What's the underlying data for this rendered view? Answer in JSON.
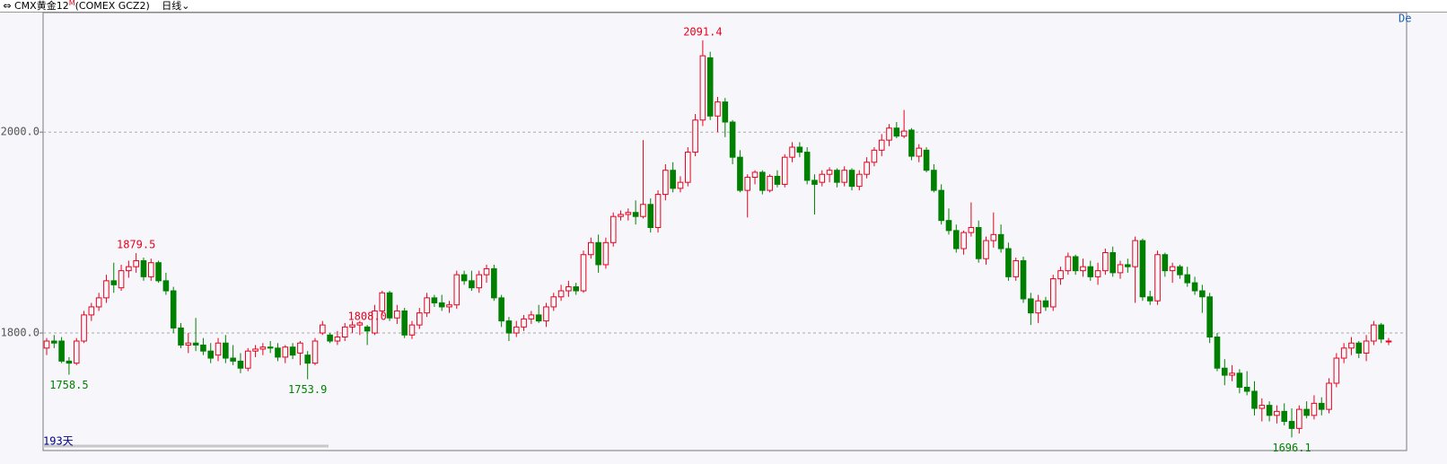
{
  "header": {
    "symbol": "CMX黄金12",
    "badge": "M",
    "code": "(COMEX GCZ2)",
    "period": "日线",
    "corner": "De",
    "days": "193天"
  },
  "chart_data": {
    "type": "candlestick",
    "up_color": "#e8001c",
    "down_color": "#008000",
    "grid": true,
    "ylim": [
      1683,
      2119
    ],
    "yticks": [
      {
        "value": 1800,
        "label": "1800.0"
      },
      {
        "value": 2000,
        "label": "2000.0"
      }
    ],
    "annotations": [
      2091.4,
      1879.5,
      1758.5,
      1753.9,
      {
        "value": 1808,
        "label": "1808.0"
      },
      1696.1
    ],
    "candles": [
      [
        1785,
        1795,
        1778,
        1792
      ],
      [
        1792,
        1798,
        1785,
        1790
      ],
      [
        1792,
        1796,
        1770,
        1772
      ],
      [
        1772,
        1776,
        1758.5,
        1770
      ],
      [
        1770,
        1795,
        1768,
        1792
      ],
      [
        1792,
        1822,
        1790,
        1818
      ],
      [
        1818,
        1830,
        1812,
        1826
      ],
      [
        1826,
        1840,
        1822,
        1835
      ],
      [
        1835,
        1858,
        1830,
        1852
      ],
      [
        1852,
        1870,
        1840,
        1848
      ],
      [
        1845,
        1868,
        1842,
        1862
      ],
      [
        1862,
        1872,
        1855,
        1866
      ],
      [
        1866,
        1879.5,
        1860,
        1872
      ],
      [
        1872,
        1875,
        1852,
        1856
      ],
      [
        1856,
        1874,
        1852,
        1870
      ],
      [
        1870,
        1872,
        1850,
        1852
      ],
      [
        1852,
        1860,
        1838,
        1842
      ],
      [
        1842,
        1846,
        1800,
        1805
      ],
      [
        1805,
        1810,
        1785,
        1788
      ],
      [
        1788,
        1800,
        1780,
        1790
      ],
      [
        1790,
        1815,
        1782,
        1788
      ],
      [
        1788,
        1795,
        1778,
        1782
      ],
      [
        1782,
        1790,
        1770,
        1775
      ],
      [
        1778,
        1795,
        1772,
        1790
      ],
      [
        1790,
        1798,
        1770,
        1775
      ],
      [
        1775,
        1788,
        1768,
        1772
      ],
      [
        1772,
        1780,
        1760,
        1765
      ],
      [
        1765,
        1785,
        1762,
        1782
      ],
      [
        1782,
        1788,
        1776,
        1784
      ],
      [
        1784,
        1790,
        1778,
        1786
      ],
      [
        1786,
        1792,
        1780,
        1785
      ],
      [
        1785,
        1790,
        1772,
        1776
      ],
      [
        1776,
        1788,
        1770,
        1786
      ],
      [
        1786,
        1790,
        1774,
        1778
      ],
      [
        1780,
        1792,
        1768,
        1790
      ],
      [
        1778,
        1782,
        1753.9,
        1770
      ],
      [
        1770,
        1795,
        1768,
        1792
      ],
      [
        1800,
        1812,
        1798,
        1808
      ],
      [
        1798,
        1800,
        1790,
        1792
      ],
      [
        1792,
        1802,
        1788,
        1796
      ],
      [
        1796,
        1810,
        1792,
        1806
      ],
      [
        1806,
        1812,
        1800,
        1808
      ],
      [
        1808,
        1812,
        1798,
        1810
      ],
      [
        1806,
        1808,
        1788,
        1802
      ],
      [
        1800,
        1828,
        1798,
        1822
      ],
      [
        1822,
        1842,
        1818,
        1840
      ],
      [
        1840,
        1842,
        1812,
        1815
      ],
      [
        1815,
        1828,
        1809,
        1822
      ],
      [
        1822,
        1825,
        1795,
        1798
      ],
      [
        1798,
        1812,
        1794,
        1808
      ],
      [
        1808,
        1825,
        1804,
        1820
      ],
      [
        1820,
        1840,
        1816,
        1835
      ],
      [
        1835,
        1838,
        1826,
        1830
      ],
      [
        1830,
        1838,
        1822,
        1826
      ],
      [
        1826,
        1832,
        1820,
        1828
      ],
      [
        1828,
        1862,
        1824,
        1858
      ],
      [
        1858,
        1862,
        1848,
        1852
      ],
      [
        1852,
        1862,
        1842,
        1845
      ],
      [
        1845,
        1862,
        1840,
        1858
      ],
      [
        1858,
        1868,
        1850,
        1864
      ],
      [
        1864,
        1868,
        1832,
        1835
      ],
      [
        1835,
        1838,
        1806,
        1812
      ],
      [
        1812,
        1816,
        1792,
        1800
      ],
      [
        1800,
        1812,
        1796,
        1806
      ],
      [
        1806,
        1818,
        1802,
        1814
      ],
      [
        1814,
        1822,
        1809,
        1818
      ],
      [
        1818,
        1828,
        1810,
        1812
      ],
      [
        1812,
        1830,
        1806,
        1826
      ],
      [
        1826,
        1840,
        1822,
        1836
      ],
      [
        1836,
        1848,
        1832,
        1842
      ],
      [
        1842,
        1852,
        1836,
        1846
      ],
      [
        1846,
        1850,
        1838,
        1842
      ],
      [
        1842,
        1882,
        1840,
        1878
      ],
      [
        1878,
        1895,
        1874,
        1890
      ],
      [
        1890,
        1898,
        1860,
        1868
      ],
      [
        1868,
        1895,
        1864,
        1890
      ],
      [
        1890,
        1920,
        1886,
        1916
      ],
      [
        1916,
        1922,
        1912,
        1918
      ],
      [
        1918,
        1924,
        1912,
        1920
      ],
      [
        1920,
        1932,
        1908,
        1916
      ],
      [
        1916,
        1992,
        1914,
        1928
      ],
      [
        1928,
        1934,
        1900,
        1905
      ],
      [
        1905,
        1942,
        1900,
        1938
      ],
      [
        1938,
        1968,
        1932,
        1962
      ],
      [
        1962,
        1970,
        1940,
        1944
      ],
      [
        1944,
        1956,
        1940,
        1950
      ],
      [
        1950,
        1985,
        1946,
        1980
      ],
      [
        1980,
        2018,
        1976,
        2012
      ],
      [
        2012,
        2091.4,
        2006,
        2076
      ],
      [
        2074,
        2080,
        2012,
        2016
      ],
      [
        2016,
        2035,
        2000,
        2030
      ],
      [
        2030,
        2034,
        1995,
        2010
      ],
      [
        2010,
        2012,
        1968,
        1975
      ],
      [
        1975,
        1982,
        1940,
        1942
      ],
      [
        1942,
        1958,
        1915,
        1955
      ],
      [
        1955,
        1962,
        1948,
        1960
      ],
      [
        1960,
        1962,
        1938,
        1942
      ],
      [
        1942,
        1958,
        1940,
        1956
      ],
      [
        1956,
        1962,
        1945,
        1948
      ],
      [
        1948,
        1978,
        1945,
        1975
      ],
      [
        1975,
        1990,
        1970,
        1985
      ],
      [
        1985,
        1990,
        1975,
        1980
      ],
      [
        1980,
        1985,
        1948,
        1952
      ],
      [
        1952,
        1958,
        1918,
        1948
      ],
      [
        1950,
        1962,
        1946,
        1958
      ],
      [
        1958,
        1965,
        1950,
        1962
      ],
      [
        1962,
        1964,
        1945,
        1950
      ],
      [
        1950,
        1966,
        1946,
        1962
      ],
      [
        1962,
        1964,
        1942,
        1946
      ],
      [
        1946,
        1962,
        1942,
        1958
      ],
      [
        1958,
        1975,
        1954,
        1970
      ],
      [
        1970,
        1985,
        1966,
        1982
      ],
      [
        1982,
        1998,
        1976,
        1992
      ],
      [
        1992,
        2008,
        1986,
        2004
      ],
      [
        2004,
        2010,
        1994,
        1996
      ],
      [
        1996,
        2022,
        1994,
        2001
      ],
      [
        2002,
        2004,
        1972,
        1976
      ],
      [
        1976,
        1988,
        1970,
        1984
      ],
      [
        1982,
        1985,
        1960,
        1962
      ],
      [
        1962,
        1968,
        1940,
        1942
      ],
      [
        1942,
        1948,
        1908,
        1912
      ],
      [
        1912,
        1924,
        1898,
        1902
      ],
      [
        1902,
        1908,
        1880,
        1884
      ],
      [
        1884,
        1902,
        1878,
        1900
      ],
      [
        1900,
        1930,
        1896,
        1905
      ],
      [
        1905,
        1912,
        1870,
        1874
      ],
      [
        1874,
        1896,
        1868,
        1892
      ],
      [
        1892,
        1920,
        1885,
        1898
      ],
      [
        1898,
        1908,
        1880,
        1884
      ],
      [
        1884,
        1890,
        1852,
        1856
      ],
      [
        1856,
        1875,
        1852,
        1872
      ],
      [
        1872,
        1876,
        1830,
        1834
      ],
      [
        1834,
        1840,
        1808,
        1820
      ],
      [
        1820,
        1838,
        1810,
        1832
      ],
      [
        1832,
        1836,
        1822,
        1826
      ],
      [
        1826,
        1858,
        1822,
        1854
      ],
      [
        1854,
        1866,
        1848,
        1862
      ],
      [
        1862,
        1880,
        1858,
        1876
      ],
      [
        1876,
        1878,
        1858,
        1862
      ],
      [
        1862,
        1874,
        1856,
        1866
      ],
      [
        1866,
        1872,
        1852,
        1856
      ],
      [
        1856,
        1870,
        1848,
        1862
      ],
      [
        1862,
        1884,
        1858,
        1880
      ],
      [
        1880,
        1886,
        1856,
        1860
      ],
      [
        1860,
        1872,
        1854,
        1868
      ],
      [
        1868,
        1874,
        1860,
        1866
      ],
      [
        1866,
        1896,
        1830,
        1892
      ],
      [
        1892,
        1894,
        1832,
        1836
      ],
      [
        1836,
        1842,
        1828,
        1832
      ],
      [
        1832,
        1882,
        1828,
        1878
      ],
      [
        1878,
        1880,
        1856,
        1862
      ],
      [
        1862,
        1870,
        1850,
        1866
      ],
      [
        1866,
        1868,
        1854,
        1858
      ],
      [
        1858,
        1866,
        1846,
        1850
      ],
      [
        1850,
        1856,
        1838,
        1842
      ],
      [
        1842,
        1848,
        1820,
        1836
      ],
      [
        1836,
        1840,
        1790,
        1796
      ],
      [
        1796,
        1800,
        1762,
        1765
      ],
      [
        1765,
        1774,
        1748,
        1758
      ],
      [
        1758,
        1768,
        1752,
        1760
      ],
      [
        1760,
        1764,
        1740,
        1746
      ],
      [
        1746,
        1762,
        1738,
        1742
      ],
      [
        1742,
        1752,
        1718,
        1725
      ],
      [
        1725,
        1735,
        1712,
        1728
      ],
      [
        1728,
        1732,
        1712,
        1718
      ],
      [
        1718,
        1728,
        1710,
        1722
      ],
      [
        1722,
        1730,
        1708,
        1712
      ],
      [
        1712,
        1725,
        1696.1,
        1705
      ],
      [
        1705,
        1728,
        1700,
        1724
      ],
      [
        1724,
        1732,
        1715,
        1718
      ],
      [
        1718,
        1738,
        1714,
        1730
      ],
      [
        1730,
        1736,
        1718,
        1724
      ],
      [
        1724,
        1755,
        1720,
        1750
      ],
      [
        1750,
        1780,
        1746,
        1775
      ],
      [
        1775,
        1790,
        1770,
        1785
      ],
      [
        1785,
        1796,
        1778,
        1790
      ],
      [
        1790,
        1792,
        1775,
        1780
      ],
      [
        1780,
        1798,
        1772,
        1792
      ],
      [
        1792,
        1812,
        1788,
        1808
      ],
      [
        1808,
        1810,
        1790,
        1794
      ],
      [
        1792,
        1795,
        1788,
        1792
      ]
    ]
  }
}
